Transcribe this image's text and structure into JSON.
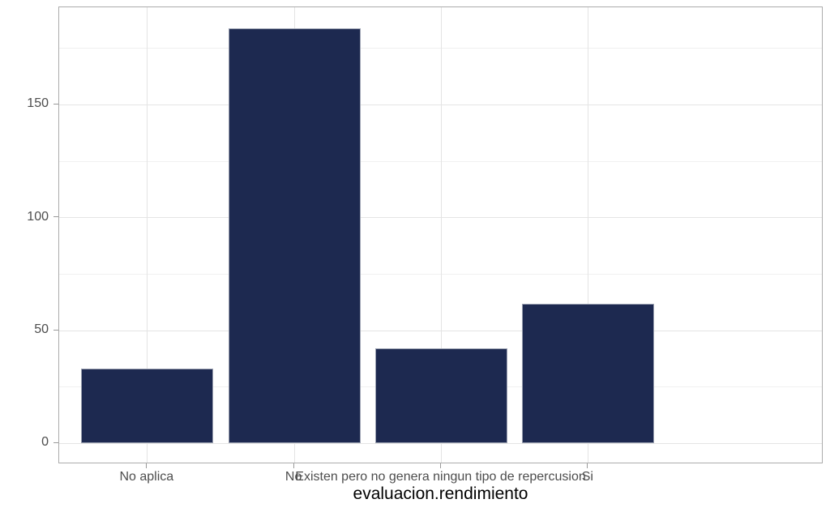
{
  "chart_data": {
    "type": "bar",
    "categories": [
      "No aplica",
      "No",
      "Existen pero no genera ningun tipo de repercusion",
      "Si"
    ],
    "values": [
      33,
      184,
      42,
      62
    ],
    "title": "",
    "xlabel": "evaluacion.rendimiento",
    "ylabel": "",
    "ylim": [
      -9.2,
      193.2
    ],
    "yticks_major": [
      0,
      50,
      100,
      150
    ],
    "yticks_minor": [
      25,
      75,
      125,
      175
    ],
    "grid": true,
    "legend_position": "none",
    "colors": {
      "bar_fill": "#1d2950",
      "bar_border": "#9aa0b0",
      "grid_major": "#e4e4e4",
      "grid_minor": "#f0f0f0",
      "panel_border": "#ababab",
      "tick_mark": "#999999",
      "tick_label": "#4d4d4d",
      "axis_title": "#000000",
      "background": "#ffffff"
    }
  }
}
